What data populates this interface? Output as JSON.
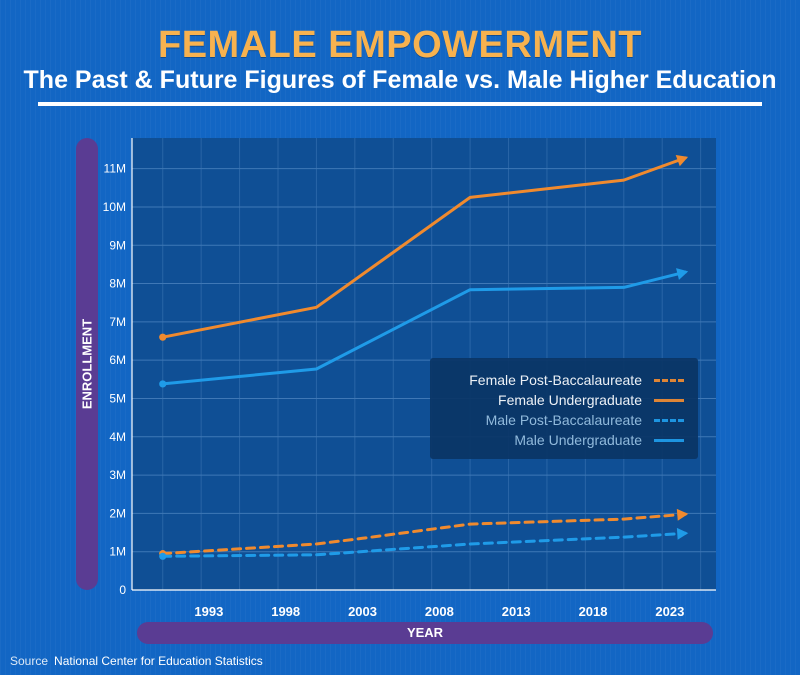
{
  "header": {
    "title": "FEMALE EMPOWERMENT",
    "subtitle": "The Past & Future Figures of Female vs. Male Higher Education"
  },
  "axes": {
    "y_label": "ENROLLMENT",
    "x_label": "YEAR"
  },
  "source": {
    "label": "Source",
    "text": "National Center for Education Statistics"
  },
  "colors": {
    "female": "#f08a2e",
    "male": "#1f9be8",
    "plot_bg": "#0f4f95",
    "grid": "#3f78b6"
  },
  "chart_data": {
    "type": "line",
    "title": "FEMALE EMPOWERMENT",
    "subtitle": "The Past & Future Figures of Female vs. Male Higher Education",
    "xlabel": "YEAR",
    "ylabel": "ENROLLMENT",
    "xlim": [
      1988,
      2026
    ],
    "ylim": [
      0,
      11800000
    ],
    "x_ticks": [
      1993,
      1998,
      2003,
      2008,
      2013,
      2018,
      2023
    ],
    "y_ticks": [
      0,
      1000000,
      2000000,
      3000000,
      4000000,
      5000000,
      6000000,
      7000000,
      8000000,
      9000000,
      10000000,
      11000000
    ],
    "y_tick_labels": [
      "0",
      "1M",
      "2M",
      "3M",
      "4M",
      "5M",
      "6M",
      "7M",
      "8M",
      "9M",
      "10M",
      "11M"
    ],
    "grid": true,
    "legend_position": "right",
    "series": [
      {
        "name": "Female Post-Baccalaureate",
        "style": "dashed",
        "color": "#f08a2e",
        "x": [
          1990,
          2000,
          2003,
          2010,
          2020,
          2024
        ],
        "y": [
          950000,
          1200000,
          1350000,
          1720000,
          1850000,
          1980000
        ]
      },
      {
        "name": "Female Undergraduate",
        "style": "solid",
        "color": "#f08a2e",
        "x": [
          1990,
          2000,
          2010,
          2020,
          2024
        ],
        "y": [
          6600000,
          7380000,
          10250000,
          10700000,
          11280000
        ]
      },
      {
        "name": "Male Post-Baccalaureate",
        "style": "dashed",
        "color": "#1f9be8",
        "x": [
          1990,
          2000,
          2010,
          2020,
          2024
        ],
        "y": [
          880000,
          920000,
          1200000,
          1380000,
          1480000
        ]
      },
      {
        "name": "Male Undergraduate",
        "style": "solid",
        "color": "#1f9be8",
        "x": [
          1990,
          2000,
          2010,
          2020,
          2024
        ],
        "y": [
          5380000,
          5770000,
          7840000,
          7900000,
          8300000
        ]
      }
    ]
  }
}
